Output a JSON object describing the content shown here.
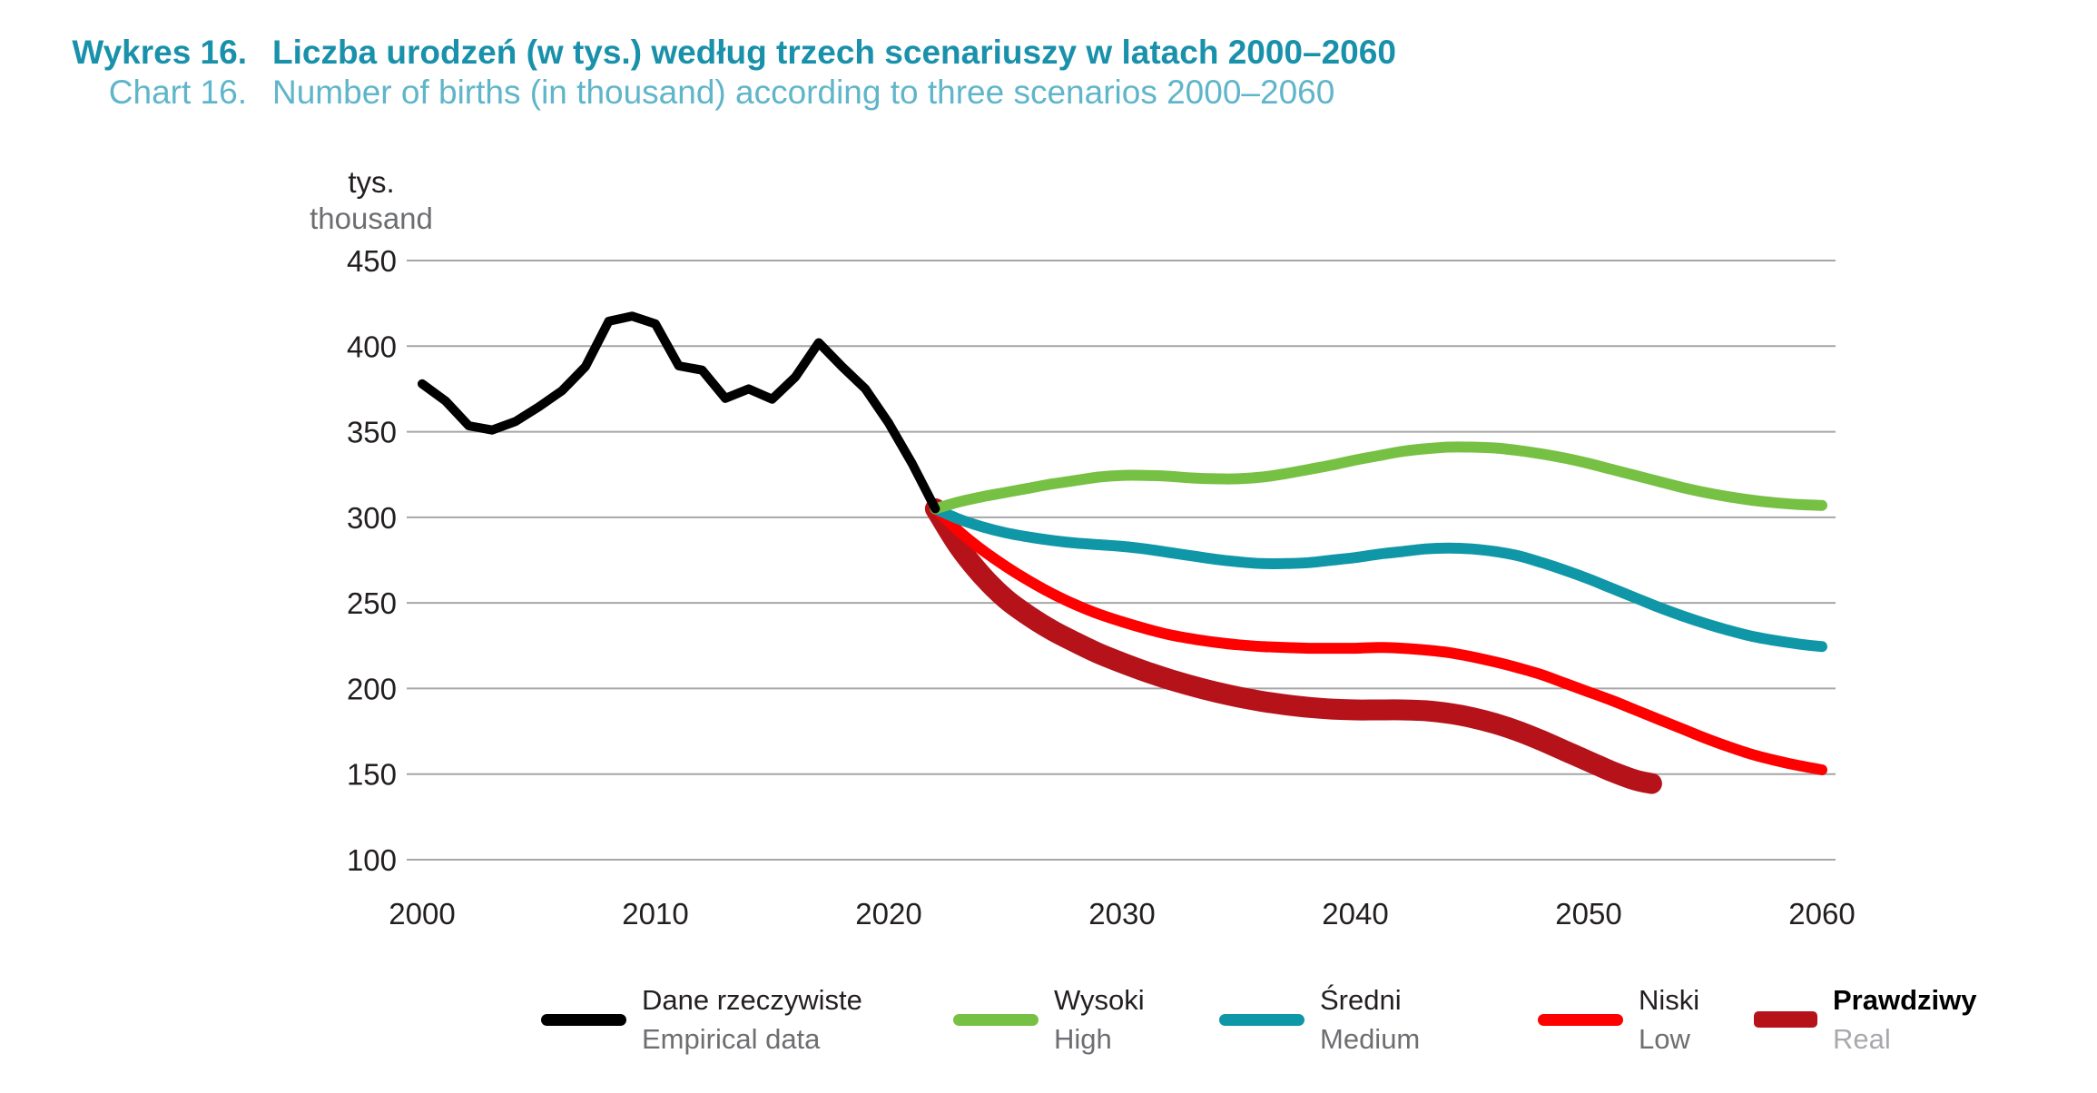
{
  "header": {
    "label_pl": "Wykres 16.",
    "label_en": "Chart 16.",
    "title_pl": "Liczba urodzeń (w tys.) według trzech scenariuszy w latach 2000–2060",
    "title_en": "Number of births (in thousand) according to three scenarios 2000–2060"
  },
  "axis": {
    "unit_pl": "tys.",
    "unit_en": "thousand",
    "y_ticks": [
      450,
      400,
      350,
      300,
      250,
      200,
      150,
      100
    ],
    "x_ticks": [
      2000,
      2010,
      2020,
      2030,
      2040,
      2050,
      2060
    ]
  },
  "colors": {
    "title_teal": "#1a91ab",
    "subtitle_teal": "#5fb5c9",
    "grid": "#a6a6a6",
    "tick_text": "#231f20",
    "unit_gray": "#6d6e71"
  },
  "legend": [
    {
      "key": "empirical",
      "pl": "Dane rzeczywiste",
      "en": "Empirical data",
      "color": "#000000"
    },
    {
      "key": "high",
      "pl": "Wysoki",
      "en": "High",
      "color": "#76c043"
    },
    {
      "key": "medium",
      "pl": "Średni",
      "en": "Medium",
      "color": "#0f97a8"
    },
    {
      "key": "low",
      "pl": "Niski",
      "en": "Low",
      "color": "#fe0000"
    },
    {
      "key": "real",
      "pl": "Prawdziwy",
      "en": "Real",
      "color": "#b5121a"
    }
  ],
  "chart_data": {
    "type": "line",
    "title": "Liczba urodzeń (w tys.) według trzech scenariuszy w latach 2000–2060",
    "xlabel": "",
    "ylabel": "tys. / thousand",
    "xlim": [
      2000,
      2060
    ],
    "ylim": [
      100,
      450
    ],
    "grid": true,
    "legend_position": "bottom",
    "draw_order": [
      "real",
      "low",
      "medium",
      "high",
      "empirical"
    ],
    "series": [
      {
        "name": "Dane rzeczywiste / Empirical data",
        "key": "empirical",
        "color": "#000000",
        "width": 10,
        "smooth": false,
        "x": [
          2000,
          2001,
          2002,
          2003,
          2004,
          2005,
          2006,
          2007,
          2008,
          2009,
          2010,
          2011,
          2012,
          2013,
          2014,
          2015,
          2016,
          2017,
          2018,
          2019,
          2020,
          2021,
          2022
        ],
        "y": [
          378,
          368,
          353.5,
          351,
          356,
          364.5,
          374,
          388,
          414.5,
          417.5,
          413,
          388.5,
          386,
          369.5,
          375,
          369,
          382,
          402,
          388,
          375,
          355,
          331.5,
          305
        ]
      },
      {
        "name": "Wysoki / High",
        "key": "high",
        "color": "#76c043",
        "width": 12,
        "smooth": true,
        "x": [
          2022,
          2023,
          2024,
          2025,
          2026,
          2027,
          2028,
          2029,
          2030,
          2031,
          2032,
          2033,
          2034,
          2035,
          2036,
          2037,
          2038,
          2039,
          2040,
          2041,
          2042,
          2043,
          2044,
          2045,
          2046,
          2047,
          2048,
          2049,
          2050,
          2051,
          2052,
          2053,
          2054,
          2055,
          2056,
          2057,
          2058,
          2059,
          2060
        ],
        "y": [
          305,
          309,
          312,
          314.5,
          317,
          319.5,
          321.5,
          323.5,
          324.5,
          324.5,
          324,
          323,
          322.5,
          322.5,
          323.5,
          325.5,
          328,
          330.5,
          333.5,
          336,
          338.5,
          340,
          341,
          341,
          340.5,
          339,
          337,
          334.5,
          331.5,
          328,
          324.5,
          321,
          317.5,
          314.5,
          312,
          310,
          308.5,
          307.5,
          307
        ]
      },
      {
        "name": "Średni / Medium",
        "key": "medium",
        "color": "#0f97a8",
        "width": 12,
        "smooth": true,
        "x": [
          2022,
          2023,
          2024,
          2025,
          2026,
          2027,
          2028,
          2029,
          2030,
          2031,
          2032,
          2033,
          2034,
          2035,
          2036,
          2037,
          2038,
          2039,
          2040,
          2041,
          2042,
          2043,
          2044,
          2045,
          2046,
          2047,
          2048,
          2049,
          2050,
          2051,
          2052,
          2053,
          2054,
          2055,
          2056,
          2057,
          2058,
          2059,
          2060
        ],
        "y": [
          305,
          299,
          294.5,
          291,
          288.5,
          286.5,
          285,
          284,
          283,
          281.5,
          279.5,
          277.5,
          275.5,
          274,
          273,
          273,
          273.5,
          275,
          276.5,
          278.5,
          280,
          281.5,
          282,
          281.5,
          280,
          277.5,
          273.5,
          269,
          264,
          258.5,
          253,
          247.5,
          242.5,
          238,
          234,
          230.5,
          228,
          226,
          224.5
        ]
      },
      {
        "name": "Niski / Low",
        "key": "low",
        "color": "#fe0000",
        "width": 12,
        "smooth": true,
        "x": [
          2022,
          2023,
          2024,
          2025,
          2026,
          2027,
          2028,
          2029,
          2030,
          2031,
          2032,
          2033,
          2034,
          2035,
          2036,
          2037,
          2038,
          2039,
          2040,
          2041,
          2042,
          2043,
          2044,
          2045,
          2046,
          2047,
          2048,
          2049,
          2050,
          2051,
          2052,
          2053,
          2054,
          2055,
          2056,
          2057,
          2058,
          2059,
          2060
        ],
        "y": [
          305,
          292,
          281,
          271.5,
          263,
          255.5,
          249,
          243.5,
          239,
          235,
          231.5,
          229,
          227,
          225.5,
          224.5,
          224,
          223.5,
          223.5,
          223.5,
          224,
          223.5,
          222.5,
          221,
          218.5,
          215.5,
          212,
          208,
          203,
          198,
          193,
          187.5,
          182,
          176.5,
          171,
          166,
          161.5,
          158,
          155,
          152.5
        ]
      },
      {
        "name": "Prawdziwy / Real",
        "key": "real",
        "color": "#b5121a",
        "width": 23,
        "smooth": true,
        "x": [
          2022,
          2023,
          2024,
          2025,
          2026,
          2027,
          2028,
          2029,
          2030,
          2031,
          2032,
          2033,
          2034,
          2035,
          2036,
          2037,
          2038,
          2039,
          2040,
          2041,
          2042,
          2043,
          2044,
          2045,
          2046,
          2047,
          2048,
          2049,
          2050,
          2051,
          2052,
          2052.7
        ],
        "y": [
          305,
          283,
          266,
          252.5,
          242.5,
          234,
          227,
          220.5,
          215,
          210,
          205.5,
          201.5,
          198,
          195,
          192.5,
          190.5,
          189,
          188,
          187.5,
          187.5,
          187.5,
          187,
          185.5,
          183,
          179.5,
          175,
          169.5,
          163.5,
          157.5,
          151.5,
          146.5,
          144.5
        ]
      }
    ]
  }
}
